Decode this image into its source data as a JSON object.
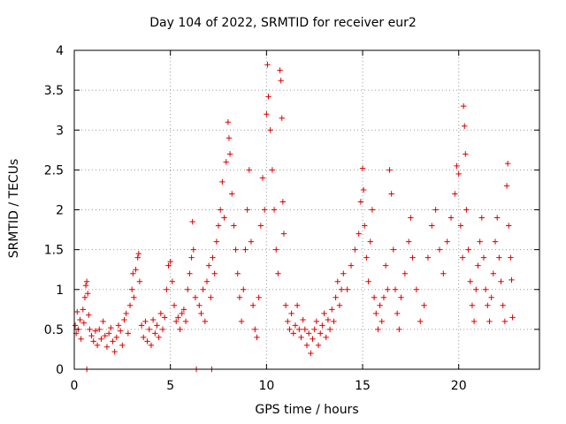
{
  "chart_data": {
    "type": "scatter",
    "title": "Day 104 of 2022, SRMTID for receiver eur2",
    "xlabel": "GPS time / hours",
    "ylabel": "SRMTID / TECUs",
    "xlim": [
      0,
      24.2
    ],
    "ylim": [
      0,
      4
    ],
    "grid": true,
    "marker": "+",
    "color": "#dd0000",
    "xticks": [
      0,
      5,
      10,
      15,
      20
    ],
    "yticks": [
      0,
      0.5,
      1,
      1.5,
      2,
      2.5,
      3,
      3.5,
      4
    ],
    "ytick_labels": [
      "0",
      "0.5",
      "1",
      "1.5",
      "2",
      "2.5",
      "3",
      "3.5",
      "4"
    ],
    "points": [
      [
        0.05,
        0.55
      ],
      [
        0.1,
        0.45
      ],
      [
        0.15,
        0.72
      ],
      [
        0.2,
        0.5
      ],
      [
        0.3,
        0.62
      ],
      [
        0.35,
        0.38
      ],
      [
        0.45,
        0.75
      ],
      [
        0.5,
        0.58
      ],
      [
        0.55,
        0.9
      ],
      [
        0.6,
        1.05
      ],
      [
        0.65,
        1.1
      ],
      [
        0.7,
        0.95
      ],
      [
        0.75,
        0.68
      ],
      [
        0.8,
        0.5
      ],
      [
        0.65,
        0.0
      ],
      [
        0.9,
        0.42
      ],
      [
        1.0,
        0.35
      ],
      [
        1.1,
        0.48
      ],
      [
        1.2,
        0.3
      ],
      [
        1.3,
        0.5
      ],
      [
        1.4,
        0.38
      ],
      [
        1.5,
        0.6
      ],
      [
        1.6,
        0.42
      ],
      [
        1.7,
        0.28
      ],
      [
        1.8,
        0.45
      ],
      [
        1.9,
        0.52
      ],
      [
        2.0,
        0.35
      ],
      [
        2.1,
        0.22
      ],
      [
        2.2,
        0.4
      ],
      [
        2.3,
        0.55
      ],
      [
        2.4,
        0.48
      ],
      [
        2.5,
        0.3
      ],
      [
        2.6,
        0.62
      ],
      [
        2.7,
        0.7
      ],
      [
        2.8,
        0.45
      ],
      [
        2.9,
        0.8
      ],
      [
        3.0,
        1.0
      ],
      [
        3.05,
        1.2
      ],
      [
        3.1,
        0.9
      ],
      [
        3.2,
        1.25
      ],
      [
        3.3,
        1.4
      ],
      [
        3.35,
        1.45
      ],
      [
        3.4,
        1.1
      ],
      [
        3.5,
        0.55
      ],
      [
        3.6,
        0.4
      ],
      [
        3.7,
        0.6
      ],
      [
        3.8,
        0.35
      ],
      [
        3.9,
        0.5
      ],
      [
        4.0,
        0.3
      ],
      [
        4.1,
        0.62
      ],
      [
        4.2,
        0.45
      ],
      [
        4.3,
        0.55
      ],
      [
        4.4,
        0.4
      ],
      [
        4.5,
        0.7
      ],
      [
        4.6,
        0.5
      ],
      [
        4.7,
        0.65
      ],
      [
        4.8,
        1.0
      ],
      [
        4.9,
        1.3
      ],
      [
        5.0,
        1.35
      ],
      [
        5.1,
        1.1
      ],
      [
        5.2,
        0.8
      ],
      [
        5.3,
        0.6
      ],
      [
        5.4,
        0.65
      ],
      [
        5.5,
        0.5
      ],
      [
        5.6,
        0.7
      ],
      [
        5.7,
        0.75
      ],
      [
        5.8,
        0.6
      ],
      [
        5.9,
        1.0
      ],
      [
        6.0,
        1.2
      ],
      [
        6.1,
        1.4
      ],
      [
        6.15,
        1.85
      ],
      [
        6.2,
        1.5
      ],
      [
        6.3,
        0.9
      ],
      [
        6.35,
        0.0
      ],
      [
        6.5,
        0.8
      ],
      [
        6.6,
        0.7
      ],
      [
        6.7,
        1.0
      ],
      [
        6.8,
        0.6
      ],
      [
        6.9,
        1.1
      ],
      [
        7.0,
        1.3
      ],
      [
        7.1,
        0.9
      ],
      [
        7.15,
        0.0
      ],
      [
        7.2,
        1.4
      ],
      [
        7.3,
        1.2
      ],
      [
        7.4,
        1.6
      ],
      [
        7.5,
        1.8
      ],
      [
        7.6,
        2.0
      ],
      [
        7.7,
        2.35
      ],
      [
        7.8,
        1.9
      ],
      [
        7.9,
        2.6
      ],
      [
        8.0,
        3.1
      ],
      [
        8.05,
        2.9
      ],
      [
        8.1,
        2.7
      ],
      [
        8.2,
        2.2
      ],
      [
        8.3,
        1.8
      ],
      [
        8.4,
        1.5
      ],
      [
        8.5,
        1.2
      ],
      [
        8.6,
        0.9
      ],
      [
        8.7,
        0.6
      ],
      [
        8.8,
        1.0
      ],
      [
        8.9,
        1.5
      ],
      [
        9.0,
        2.0
      ],
      [
        9.1,
        2.5
      ],
      [
        9.2,
        1.6
      ],
      [
        9.3,
        0.8
      ],
      [
        9.4,
        0.5
      ],
      [
        9.5,
        0.4
      ],
      [
        9.6,
        0.9
      ],
      [
        9.7,
        1.8
      ],
      [
        9.8,
        2.4
      ],
      [
        9.9,
        2.0
      ],
      [
        10.0,
        3.2
      ],
      [
        10.05,
        3.82
      ],
      [
        10.1,
        3.42
      ],
      [
        10.2,
        3.0
      ],
      [
        10.3,
        2.5
      ],
      [
        10.4,
        2.0
      ],
      [
        10.5,
        1.5
      ],
      [
        10.6,
        1.2
      ],
      [
        10.7,
        3.75
      ],
      [
        10.75,
        3.62
      ],
      [
        10.8,
        3.15
      ],
      [
        10.85,
        2.1
      ],
      [
        10.9,
        1.7
      ],
      [
        11.0,
        0.8
      ],
      [
        11.1,
        0.6
      ],
      [
        11.2,
        0.5
      ],
      [
        11.3,
        0.7
      ],
      [
        11.4,
        0.45
      ],
      [
        11.5,
        0.55
      ],
      [
        11.6,
        0.8
      ],
      [
        11.7,
        0.5
      ],
      [
        11.8,
        0.4
      ],
      [
        11.9,
        0.62
      ],
      [
        12.0,
        0.5
      ],
      [
        12.1,
        0.3
      ],
      [
        12.2,
        0.45
      ],
      [
        12.3,
        0.2
      ],
      [
        12.4,
        0.38
      ],
      [
        12.5,
        0.5
      ],
      [
        12.6,
        0.6
      ],
      [
        12.7,
        0.3
      ],
      [
        12.8,
        0.45
      ],
      [
        12.9,
        0.55
      ],
      [
        13.0,
        0.7
      ],
      [
        13.1,
        0.4
      ],
      [
        13.2,
        0.62
      ],
      [
        13.3,
        0.5
      ],
      [
        13.4,
        0.75
      ],
      [
        13.5,
        0.6
      ],
      [
        13.6,
        0.9
      ],
      [
        13.7,
        1.1
      ],
      [
        13.8,
        0.8
      ],
      [
        13.9,
        1.0
      ],
      [
        14.0,
        1.2
      ],
      [
        14.2,
        1.0
      ],
      [
        14.4,
        1.3
      ],
      [
        14.6,
        1.5
      ],
      [
        14.8,
        1.7
      ],
      [
        14.9,
        2.1
      ],
      [
        15.0,
        2.52
      ],
      [
        15.05,
        2.25
      ],
      [
        15.1,
        1.8
      ],
      [
        15.2,
        1.4
      ],
      [
        15.3,
        1.1
      ],
      [
        15.4,
        1.6
      ],
      [
        15.5,
        2.0
      ],
      [
        15.6,
        0.9
      ],
      [
        15.7,
        0.7
      ],
      [
        15.8,
        0.5
      ],
      [
        15.9,
        0.8
      ],
      [
        16.0,
        0.6
      ],
      [
        16.1,
        0.9
      ],
      [
        16.2,
        1.3
      ],
      [
        16.3,
        1.0
      ],
      [
        16.4,
        2.5
      ],
      [
        16.5,
        2.2
      ],
      [
        16.6,
        1.5
      ],
      [
        16.7,
        1.0
      ],
      [
        16.8,
        0.7
      ],
      [
        16.9,
        0.5
      ],
      [
        17.0,
        0.9
      ],
      [
        17.2,
        1.2
      ],
      [
        17.4,
        1.6
      ],
      [
        17.5,
        1.9
      ],
      [
        17.6,
        1.4
      ],
      [
        17.8,
        1.0
      ],
      [
        18.0,
        0.6
      ],
      [
        18.2,
        0.8
      ],
      [
        18.4,
        1.4
      ],
      [
        18.6,
        1.8
      ],
      [
        18.8,
        2.0
      ],
      [
        19.0,
        1.5
      ],
      [
        19.2,
        1.2
      ],
      [
        19.4,
        1.6
      ],
      [
        19.6,
        1.9
      ],
      [
        19.8,
        2.2
      ],
      [
        19.9,
        2.55
      ],
      [
        20.0,
        2.45
      ],
      [
        20.1,
        1.8
      ],
      [
        20.2,
        1.4
      ],
      [
        20.25,
        3.3
      ],
      [
        20.3,
        3.05
      ],
      [
        20.35,
        2.7
      ],
      [
        20.4,
        2.0
      ],
      [
        20.5,
        1.5
      ],
      [
        20.6,
        1.1
      ],
      [
        20.7,
        0.8
      ],
      [
        20.8,
        0.6
      ],
      [
        20.9,
        1.0
      ],
      [
        21.0,
        1.3
      ],
      [
        21.1,
        1.6
      ],
      [
        21.2,
        1.9
      ],
      [
        21.3,
        1.4
      ],
      [
        21.4,
        1.0
      ],
      [
        21.5,
        0.8
      ],
      [
        21.6,
        0.6
      ],
      [
        21.7,
        0.9
      ],
      [
        21.8,
        1.2
      ],
      [
        21.9,
        1.6
      ],
      [
        22.0,
        1.9
      ],
      [
        22.1,
        1.4
      ],
      [
        22.2,
        1.1
      ],
      [
        22.3,
        0.8
      ],
      [
        22.4,
        0.6
      ],
      [
        22.5,
        2.3
      ],
      [
        22.55,
        2.58
      ],
      [
        22.6,
        1.8
      ],
      [
        22.7,
        1.4
      ],
      [
        22.75,
        1.12
      ],
      [
        22.8,
        0.65
      ]
    ]
  }
}
